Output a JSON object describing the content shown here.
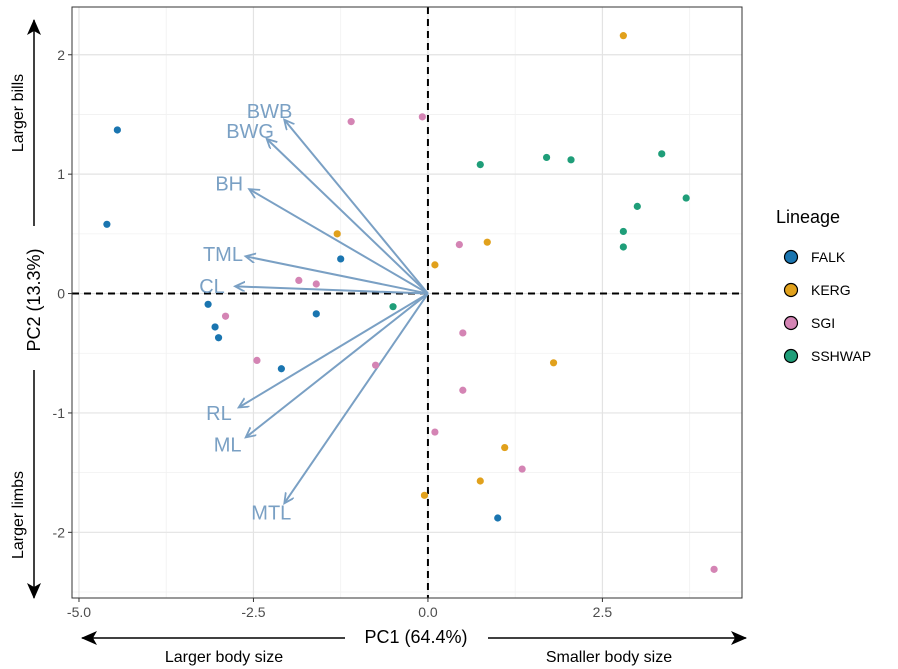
{
  "chart_data": {
    "type": "scatter",
    "xlabel": "PC1 (64.4%)",
    "ylabel": "PC2 (13.3%)",
    "xlim": [
      -5.1,
      4.5
    ],
    "ylim": [
      -2.55,
      2.4
    ],
    "x_ticks": [
      -5.0,
      -2.5,
      0.0,
      2.5
    ],
    "y_ticks": [
      -2,
      -1,
      0,
      1,
      2
    ],
    "x_tick_labels": [
      "-5.0",
      "-2.5",
      "0.0",
      "2.5"
    ],
    "y_tick_labels": [
      "-2",
      "-1",
      "0",
      "1",
      "2"
    ],
    "grid": true,
    "reference_lines": {
      "x": 0,
      "y": 0,
      "style": "dashed"
    },
    "side_labels": {
      "left": "Larger body size",
      "right": "Smaller body size",
      "top": "Larger bills",
      "bottom": "Larger limbs"
    },
    "legend": {
      "title": "Lineage",
      "position": "right"
    },
    "series": [
      {
        "name": "FALK",
        "color": "#1a75b0",
        "points": [
          [
            -4.45,
            1.37
          ],
          [
            -4.6,
            0.58
          ],
          [
            -1.25,
            0.29
          ],
          [
            -3.15,
            -0.09
          ],
          [
            -3.05,
            -0.28
          ],
          [
            -3.0,
            -0.37
          ],
          [
            -1.6,
            -0.17
          ],
          [
            -2.1,
            -0.63
          ],
          [
            1.0,
            -1.88
          ]
        ]
      },
      {
        "name": "KERG",
        "color": "#e1a11c",
        "points": [
          [
            2.8,
            2.16
          ],
          [
            -1.3,
            0.5
          ],
          [
            0.1,
            0.24
          ],
          [
            0.85,
            0.43
          ],
          [
            1.8,
            -0.58
          ],
          [
            1.1,
            -1.29
          ],
          [
            0.75,
            -1.57
          ],
          [
            -0.05,
            -1.69
          ]
        ]
      },
      {
        "name": "SGI",
        "color": "#d484b4",
        "points": [
          [
            -1.1,
            1.44
          ],
          [
            -0.08,
            1.48
          ],
          [
            -1.85,
            0.11
          ],
          [
            -1.6,
            0.08
          ],
          [
            0.45,
            0.41
          ],
          [
            -2.9,
            -0.19
          ],
          [
            -2.45,
            -0.56
          ],
          [
            -0.75,
            -0.6
          ],
          [
            0.5,
            -0.33
          ],
          [
            0.5,
            -0.81
          ],
          [
            0.1,
            -1.16
          ],
          [
            1.35,
            -1.47
          ],
          [
            4.1,
            -2.31
          ]
        ]
      },
      {
        "name": "SSHWAP",
        "color": "#1f9e79",
        "points": [
          [
            0.75,
            1.08
          ],
          [
            1.7,
            1.14
          ],
          [
            2.05,
            1.12
          ],
          [
            3.35,
            1.17
          ],
          [
            3.7,
            0.8
          ],
          [
            3.0,
            0.73
          ],
          [
            2.8,
            0.52
          ],
          [
            2.8,
            0.39
          ],
          [
            -0.5,
            -0.11
          ]
        ]
      }
    ],
    "loadings": {
      "color": "#7aa0c4",
      "vectors": [
        {
          "name": "BWB",
          "x": -2.05,
          "y": 1.45
        },
        {
          "name": "BWG",
          "x": -2.3,
          "y": 1.29
        },
        {
          "name": "BH",
          "x": -2.55,
          "y": 0.87
        },
        {
          "name": "TML",
          "x": -2.6,
          "y": 0.31
        },
        {
          "name": "CL",
          "x": -2.75,
          "y": 0.06
        },
        {
          "name": "RL",
          "x": -2.7,
          "y": -0.95
        },
        {
          "name": "ML",
          "x": -2.6,
          "y": -1.2
        },
        {
          "name": "MTL",
          "x": -2.05,
          "y": -1.75
        }
      ]
    }
  }
}
